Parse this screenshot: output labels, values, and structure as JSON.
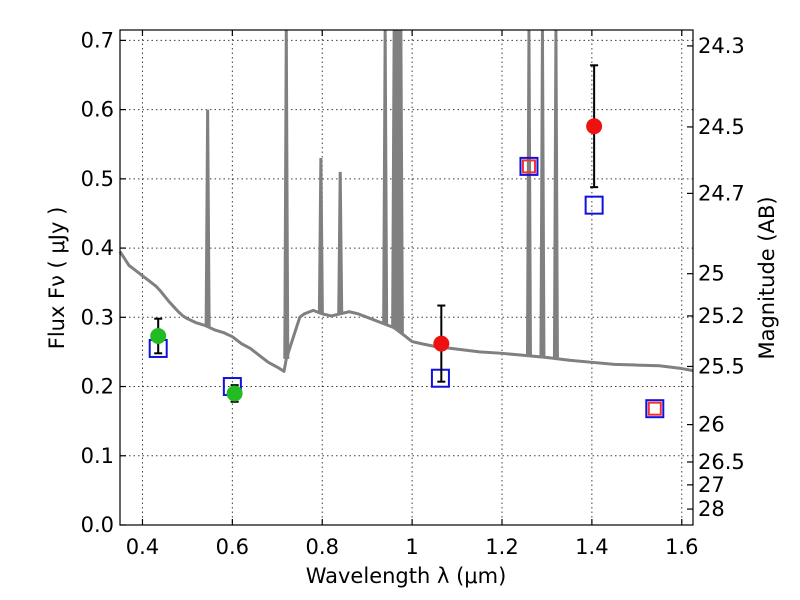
{
  "chart_data": {
    "type": "scatter",
    "xlabel": "Wavelength  λ (μm)",
    "ylabel": "Flux  Fν  ( μJy )",
    "ylabel_right": "Magnitude (AB)",
    "xlim": [
      0.35,
      1.625
    ],
    "ylim": [
      0.0,
      0.715
    ],
    "grid": true,
    "x_ticks": [
      0.4,
      0.6,
      0.8,
      1.0,
      1.2,
      1.4,
      1.6
    ],
    "x_tick_labels": [
      "0.4",
      "0.6",
      "0.8",
      "1",
      "1.2",
      "1.4",
      "1.6"
    ],
    "y_ticks": [
      0.0,
      0.1,
      0.2,
      0.3,
      0.4,
      0.5,
      0.6,
      0.7
    ],
    "y_tick_labels": [
      "0.0",
      "0.1",
      "0.2",
      "0.3",
      "0.4",
      "0.5",
      "0.6",
      "0.7"
    ],
    "right_axis_ticks": [
      {
        "label": "24.3",
        "flux": 0.692
      },
      {
        "label": "24.5",
        "flux": 0.575
      },
      {
        "label": "24.7",
        "flux": 0.479
      },
      {
        "label": "25",
        "flux": 0.363
      },
      {
        "label": "25.2",
        "flux": 0.302
      },
      {
        "label": "25.5",
        "flux": 0.229
      },
      {
        "label": "26",
        "flux": 0.145
      },
      {
        "label": "26.5",
        "flux": 0.091
      },
      {
        "label": "27",
        "flux": 0.058
      },
      {
        "label": "28",
        "flux": 0.023
      }
    ],
    "colors": {
      "model": "#808080",
      "green": "#22bb22",
      "red": "#ee1111",
      "blue_square": "#1111dd",
      "red_square": "#ee3333"
    },
    "model_spectrum": {
      "continuum": [
        [
          0.35,
          0.395
        ],
        [
          0.36,
          0.385
        ],
        [
          0.37,
          0.375
        ],
        [
          0.38,
          0.37
        ],
        [
          0.39,
          0.365
        ],
        [
          0.4,
          0.36
        ],
        [
          0.41,
          0.355
        ],
        [
          0.42,
          0.35
        ],
        [
          0.43,
          0.345
        ],
        [
          0.44,
          0.338
        ],
        [
          0.45,
          0.33
        ],
        [
          0.46,
          0.322
        ],
        [
          0.47,
          0.315
        ],
        [
          0.48,
          0.308
        ],
        [
          0.49,
          0.302
        ],
        [
          0.5,
          0.298
        ],
        [
          0.51,
          0.295
        ],
        [
          0.52,
          0.292
        ],
        [
          0.53,
          0.29
        ],
        [
          0.54,
          0.288
        ],
        [
          0.55,
          0.285
        ],
        [
          0.56,
          0.282
        ],
        [
          0.58,
          0.278
        ],
        [
          0.6,
          0.272
        ],
        [
          0.62,
          0.262
        ],
        [
          0.64,
          0.255
        ],
        [
          0.66,
          0.245
        ],
        [
          0.68,
          0.235
        ],
        [
          0.7,
          0.228
        ],
        [
          0.715,
          0.222
        ],
        [
          0.72,
          0.24
        ],
        [
          0.73,
          0.26
        ],
        [
          0.74,
          0.28
        ],
        [
          0.75,
          0.3
        ],
        [
          0.76,
          0.305
        ],
        [
          0.78,
          0.31
        ],
        [
          0.8,
          0.305
        ],
        [
          0.82,
          0.302
        ],
        [
          0.84,
          0.305
        ],
        [
          0.86,
          0.308
        ],
        [
          0.88,
          0.305
        ],
        [
          0.9,
          0.3
        ],
        [
          0.92,
          0.295
        ],
        [
          0.94,
          0.29
        ],
        [
          0.96,
          0.285
        ],
        [
          0.98,
          0.275
        ],
        [
          1.0,
          0.265
        ],
        [
          1.02,
          0.262
        ],
        [
          1.05,
          0.258
        ],
        [
          1.1,
          0.254
        ],
        [
          1.15,
          0.25
        ],
        [
          1.2,
          0.248
        ],
        [
          1.25,
          0.245
        ],
        [
          1.3,
          0.242
        ],
        [
          1.35,
          0.238
        ],
        [
          1.4,
          0.235
        ],
        [
          1.45,
          0.232
        ],
        [
          1.5,
          0.231
        ],
        [
          1.55,
          0.23
        ],
        [
          1.6,
          0.226
        ],
        [
          1.625,
          0.223
        ]
      ],
      "emission_lines": [
        [
          0.545,
          0.6
        ],
        [
          0.72,
          0.72
        ],
        [
          0.797,
          0.53
        ],
        [
          0.84,
          0.51
        ],
        [
          0.94,
          0.72
        ],
        [
          0.96,
          0.72
        ],
        [
          0.965,
          0.72
        ],
        [
          0.97,
          0.72
        ],
        [
          0.975,
          0.72
        ],
        [
          1.26,
          0.72
        ],
        [
          1.29,
          0.72
        ],
        [
          1.32,
          0.72
        ]
      ]
    },
    "points_green": [
      {
        "x": 0.435,
        "y": 0.273,
        "yerr": 0.025
      },
      {
        "x": 0.605,
        "y": 0.19,
        "yerr": 0.012
      }
    ],
    "points_red": [
      {
        "x": 1.065,
        "y": 0.262,
        "yerr": 0.055
      },
      {
        "x": 1.405,
        "y": 0.576,
        "yerr": 0.088
      }
    ],
    "model_squares_blue": [
      {
        "x": 0.435,
        "y": 0.255
      },
      {
        "x": 0.6,
        "y": 0.2
      },
      {
        "x": 1.063,
        "y": 0.212
      },
      {
        "x": 1.26,
        "y": 0.518
      },
      {
        "x": 1.405,
        "y": 0.462
      },
      {
        "x": 1.54,
        "y": 0.168
      }
    ],
    "model_squares_red": [
      {
        "x": 1.26,
        "y": 0.518
      },
      {
        "x": 1.54,
        "y": 0.168
      }
    ]
  }
}
